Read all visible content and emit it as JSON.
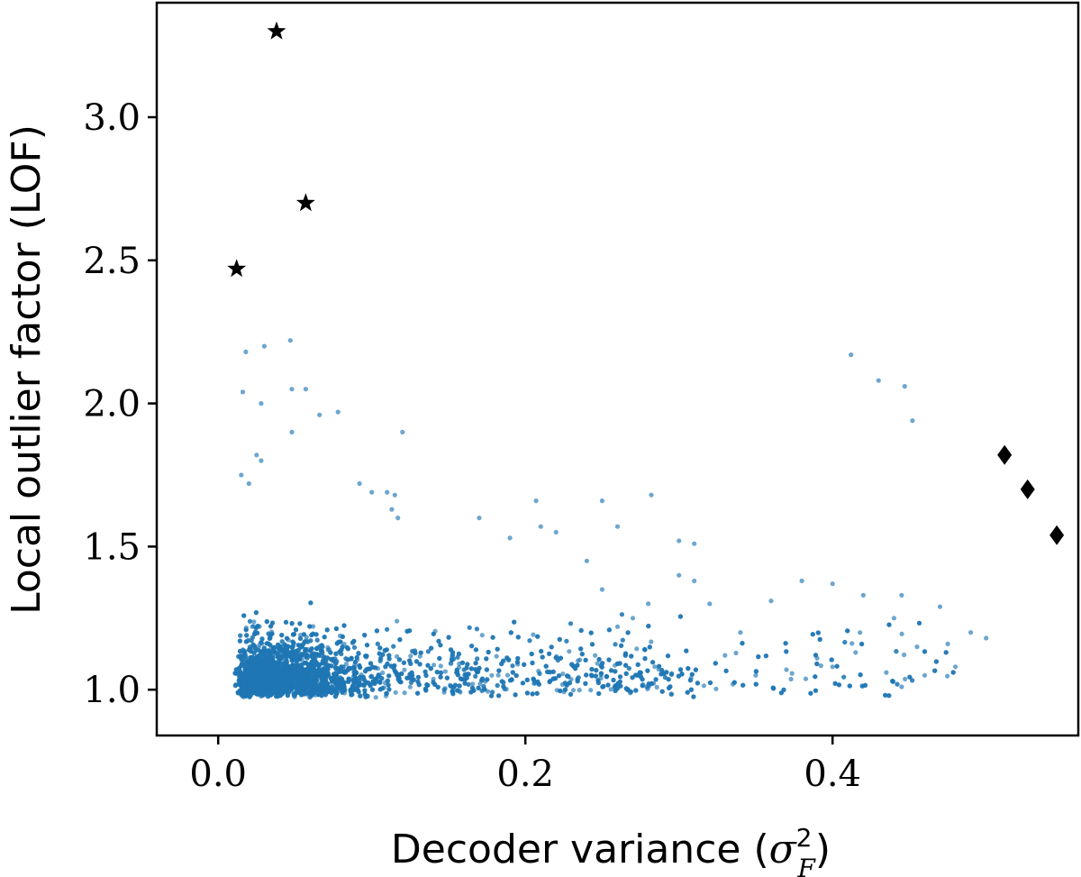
{
  "chart_data": {
    "type": "scatter",
    "title": "",
    "xlabel": "Decoder variance (σ²F)",
    "xlabel_parts": {
      "prefix": "Decoder variance (",
      "symbol": "σ",
      "superscript": "2",
      "subscript": "F",
      "suffix": ")"
    },
    "ylabel": "Local outlier factor (LOF)",
    "xlim": [
      -0.04,
      0.56
    ],
    "ylim": [
      0.84,
      3.4
    ],
    "xticks": [
      0.0,
      0.2,
      0.4
    ],
    "xtick_labels": [
      "0.0",
      "0.2",
      "0.4"
    ],
    "yticks": [
      1.0,
      1.5,
      2.0,
      2.5,
      3.0
    ],
    "ytick_labels": [
      "1.0",
      "1.5",
      "2.0",
      "2.5",
      "3.0"
    ],
    "grid": false,
    "legend": "none",
    "colors": {
      "main": "#1f77b4",
      "markers": "#000000"
    },
    "main_cloud": {
      "approx_count": 5000,
      "x_range": [
        0.01,
        0.5
      ],
      "y_range": [
        0.97,
        2.22
      ],
      "dense_region": {
        "x": [
          0.01,
          0.12
        ],
        "y": [
          0.97,
          1.4
        ]
      }
    },
    "series": [
      {
        "marker": "circle",
        "color": "#1f77b4",
        "points": [
          [
            0.018,
            2.18
          ],
          [
            0.03,
            2.2
          ],
          [
            0.047,
            2.22
          ],
          [
            0.016,
            2.04
          ],
          [
            0.028,
            2.0
          ],
          [
            0.048,
            2.05
          ],
          [
            0.057,
            2.05
          ],
          [
            0.066,
            1.96
          ],
          [
            0.078,
            1.97
          ],
          [
            0.048,
            1.9
          ],
          [
            0.12,
            1.9
          ],
          [
            0.025,
            1.82
          ],
          [
            0.028,
            1.8
          ],
          [
            0.015,
            1.75
          ],
          [
            0.02,
            1.72
          ],
          [
            0.092,
            1.72
          ],
          [
            0.1,
            1.69
          ],
          [
            0.11,
            1.69
          ],
          [
            0.115,
            1.68
          ],
          [
            0.113,
            1.63
          ],
          [
            0.117,
            1.6
          ],
          [
            0.207,
            1.66
          ],
          [
            0.25,
            1.66
          ],
          [
            0.282,
            1.68
          ],
          [
            0.17,
            1.6
          ],
          [
            0.26,
            1.57
          ],
          [
            0.21,
            1.57
          ],
          [
            0.22,
            1.55
          ],
          [
            0.19,
            1.53
          ],
          [
            0.3,
            1.52
          ],
          [
            0.31,
            1.51
          ],
          [
            0.412,
            2.17
          ],
          [
            0.43,
            2.08
          ],
          [
            0.447,
            2.06
          ],
          [
            0.452,
            1.94
          ],
          [
            0.36,
            1.31
          ],
          [
            0.38,
            1.38
          ],
          [
            0.4,
            1.37
          ],
          [
            0.42,
            1.33
          ],
          [
            0.445,
            1.33
          ],
          [
            0.47,
            1.29
          ],
          [
            0.49,
            1.2
          ],
          [
            0.5,
            1.18
          ],
          [
            0.48,
            1.08
          ],
          [
            0.46,
            1.05
          ],
          [
            0.445,
            1.01
          ],
          [
            0.435,
            1.06
          ],
          [
            0.44,
            1.25
          ],
          [
            0.455,
            1.15
          ],
          [
            0.475,
            1.16
          ],
          [
            0.415,
            1.13
          ],
          [
            0.39,
            1.11
          ],
          [
            0.4,
            1.08
          ],
          [
            0.37,
            1.07
          ],
          [
            0.35,
            1.05
          ],
          [
            0.33,
            1.12
          ],
          [
            0.34,
            1.2
          ],
          [
            0.32,
            1.3
          ],
          [
            0.31,
            1.38
          ],
          [
            0.3,
            1.4
          ],
          [
            0.28,
            1.3
          ],
          [
            0.27,
            1.25
          ],
          [
            0.26,
            1.22
          ],
          [
            0.25,
            1.35
          ],
          [
            0.24,
            1.45
          ]
        ]
      },
      {
        "marker": "star",
        "color": "#000000",
        "points": [
          [
            0.038,
            3.3
          ],
          [
            0.057,
            2.7
          ],
          [
            0.012,
            2.47
          ]
        ]
      },
      {
        "marker": "diamond",
        "color": "#000000",
        "points": [
          [
            0.512,
            1.82
          ],
          [
            0.527,
            1.7
          ],
          [
            0.546,
            1.54
          ]
        ]
      }
    ]
  }
}
